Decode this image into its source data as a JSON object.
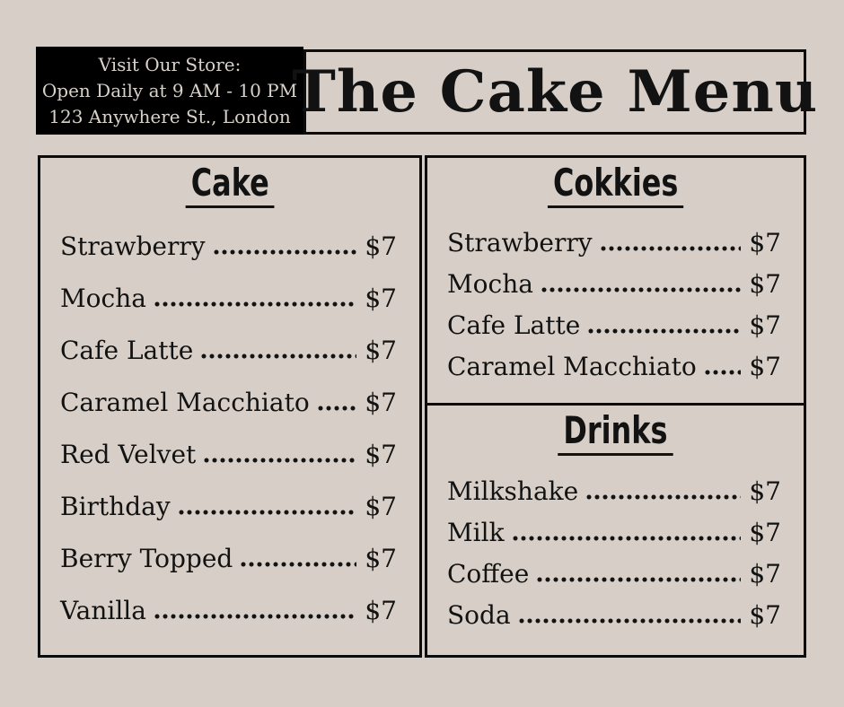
{
  "page": {
    "background": "#d7cfc7",
    "ink": "#121212",
    "header_bg": "#000000",
    "header_text": "#d9d2c9"
  },
  "store_info": {
    "lines": [
      "Visit Our Store:",
      "Open Daily at 9 AM - 10 PM",
      "123 Anywhere St., London"
    ]
  },
  "title": "The Cake Menu",
  "sections": [
    {
      "id": "cake",
      "title": "Cake",
      "items": [
        {
          "name": "Strawberry",
          "price": "$7"
        },
        {
          "name": "Mocha",
          "price": "$7"
        },
        {
          "name": "Cafe Latte",
          "price": "$7"
        },
        {
          "name": "Caramel Macchiato",
          "price": "$7"
        },
        {
          "name": "Red Velvet",
          "price": "$7"
        },
        {
          "name": "Birthday",
          "price": "$7"
        },
        {
          "name": "Berry Topped",
          "price": "$7"
        },
        {
          "name": "Vanilla",
          "price": "$7"
        }
      ]
    },
    {
      "id": "cookies",
      "title": "Cokkies",
      "items": [
        {
          "name": "Strawberry",
          "price": "$7"
        },
        {
          "name": "Mocha",
          "price": "$7"
        },
        {
          "name": "Cafe Latte",
          "price": "$7"
        },
        {
          "name": "Caramel Macchiato",
          "price": "$7"
        }
      ]
    },
    {
      "id": "drinks",
      "title": "Drinks",
      "items": [
        {
          "name": "Milkshake",
          "price": "$7"
        },
        {
          "name": "Milk",
          "price": "$7"
        },
        {
          "name": "Coffee",
          "price": "$7"
        },
        {
          "name": "Soda",
          "price": "$7"
        }
      ]
    }
  ]
}
